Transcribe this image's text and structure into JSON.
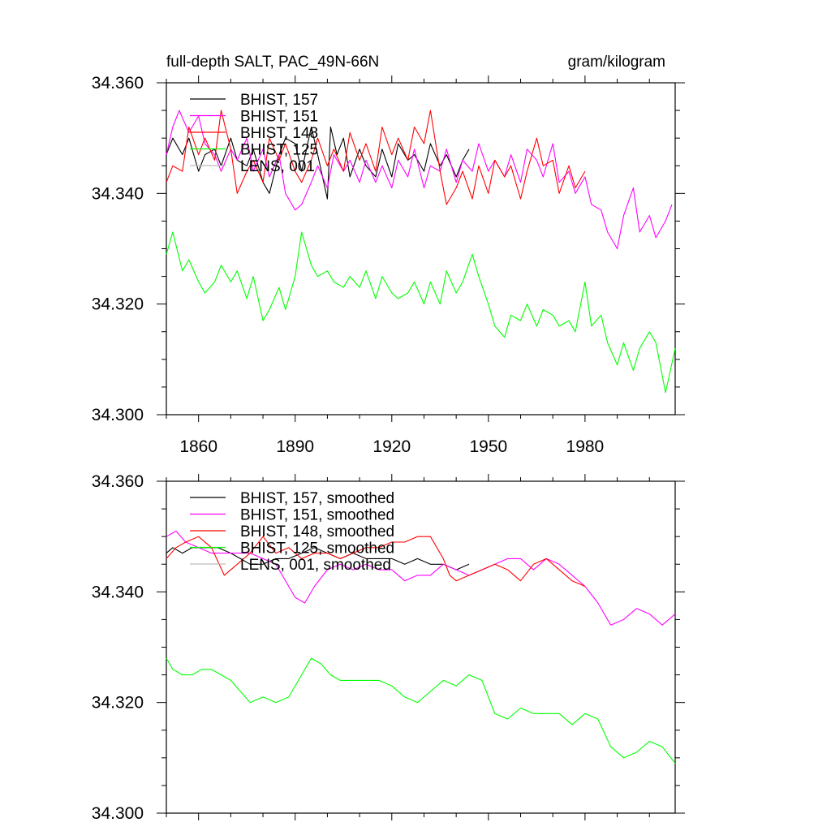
{
  "chart_data": [
    {
      "type": "line",
      "title": "full-depth SALT, PAC_49N-66N",
      "units": "gram/kilogram",
      "xlim": [
        1850,
        2008
      ],
      "ylim": [
        34.3,
        34.36
      ],
      "xticks": [
        1860,
        1890,
        1920,
        1950,
        1980
      ],
      "xtick_labels": [
        "1860",
        "1890",
        "1920",
        "1950",
        "1980"
      ],
      "yticks": [
        34.3,
        34.32,
        34.34,
        34.36
      ],
      "ytick_labels": [
        "34.300",
        "34.320",
        "34.340",
        "34.360"
      ],
      "legend_position": "top-left",
      "series": [
        {
          "name": "BHIST, 157",
          "color": "#000000",
          "x": [
            1850,
            1852,
            1855,
            1857,
            1860,
            1862,
            1865,
            1867,
            1870,
            1872,
            1875,
            1877,
            1880,
            1882,
            1885,
            1887,
            1890,
            1892,
            1895,
            1897,
            1900,
            1901,
            1903,
            1905,
            1907,
            1910,
            1912,
            1915,
            1917,
            1920,
            1922,
            1925,
            1927,
            1930,
            1932,
            1935,
            1937,
            1940,
            1942,
            1944
          ],
          "y": [
            34.347,
            34.35,
            34.347,
            34.35,
            34.344,
            34.347,
            34.348,
            34.345,
            34.35,
            34.346,
            34.345,
            34.348,
            34.342,
            34.34,
            34.347,
            34.35,
            34.349,
            34.344,
            34.352,
            34.347,
            34.339,
            34.352,
            34.347,
            34.35,
            34.343,
            34.348,
            34.345,
            34.343,
            34.348,
            34.343,
            34.349,
            34.346,
            34.347,
            34.344,
            34.349,
            34.345,
            34.347,
            34.343,
            34.346,
            34.348
          ]
        },
        {
          "name": "BHIST, 151",
          "color": "#ff00ff",
          "x": [
            1850,
            1852,
            1854,
            1857,
            1860,
            1862,
            1865,
            1867,
            1870,
            1872,
            1875,
            1877,
            1880,
            1882,
            1885,
            1887,
            1890,
            1892,
            1895,
            1897,
            1900,
            1902,
            1905,
            1907,
            1910,
            1912,
            1915,
            1917,
            1920,
            1922,
            1925,
            1927,
            1930,
            1932,
            1935,
            1937,
            1940,
            1942,
            1945,
            1947,
            1950,
            1952,
            1955,
            1957,
            1960,
            1962,
            1965,
            1967,
            1970,
            1972,
            1975,
            1977,
            1980,
            1982,
            1985,
            1987,
            1990,
            1992,
            1995,
            1997,
            2000,
            2002,
            2005,
            2007
          ],
          "y": [
            34.347,
            34.352,
            34.355,
            34.351,
            34.354,
            34.349,
            34.347,
            34.344,
            34.348,
            34.346,
            34.35,
            34.344,
            34.348,
            34.343,
            34.347,
            34.34,
            34.337,
            34.338,
            34.342,
            34.345,
            34.341,
            34.347,
            34.344,
            34.346,
            34.342,
            34.346,
            34.342,
            34.345,
            34.341,
            34.346,
            34.343,
            34.348,
            34.341,
            34.345,
            34.344,
            34.348,
            34.342,
            34.346,
            34.344,
            34.349,
            34.344,
            34.346,
            34.343,
            34.347,
            34.342,
            34.348,
            34.346,
            34.343,
            34.349,
            34.342,
            34.344,
            34.34,
            34.343,
            34.338,
            34.337,
            34.333,
            34.33,
            34.336,
            34.341,
            34.333,
            34.336,
            34.332,
            34.335,
            34.338
          ]
        },
        {
          "name": "BHIST, 148",
          "color": "#ff0000",
          "x": [
            1850,
            1852,
            1855,
            1857,
            1860,
            1862,
            1865,
            1867,
            1870,
            1872,
            1875,
            1877,
            1880,
            1882,
            1885,
            1887,
            1890,
            1892,
            1895,
            1897,
            1900,
            1902,
            1905,
            1907,
            1910,
            1912,
            1915,
            1917,
            1920,
            1922,
            1925,
            1927,
            1930,
            1932,
            1935,
            1937,
            1940,
            1942,
            1945,
            1947,
            1950,
            1952,
            1955,
            1957,
            1960,
            1962,
            1965,
            1967,
            1970,
            1972,
            1975,
            1977,
            1980
          ],
          "y": [
            34.342,
            34.345,
            34.344,
            34.352,
            34.347,
            34.35,
            34.346,
            34.355,
            34.348,
            34.34,
            34.344,
            34.346,
            34.342,
            34.35,
            34.346,
            34.349,
            34.344,
            34.342,
            34.346,
            34.35,
            34.345,
            34.348,
            34.344,
            34.351,
            34.346,
            34.349,
            34.344,
            34.352,
            34.347,
            34.35,
            34.346,
            34.352,
            34.349,
            34.355,
            34.344,
            34.338,
            34.341,
            34.344,
            34.339,
            34.345,
            34.34,
            34.346,
            34.343,
            34.345,
            34.339,
            34.344,
            34.35,
            34.345,
            34.346,
            34.34,
            34.345,
            34.341,
            34.344
          ]
        },
        {
          "name": "BHIST, 125",
          "color": "#00ff00",
          "x": [
            1850,
            1852,
            1855,
            1857,
            1860,
            1862,
            1865,
            1867,
            1870,
            1872,
            1875,
            1877,
            1880,
            1882,
            1885,
            1887,
            1890,
            1892,
            1895,
            1897,
            1900,
            1902,
            1905,
            1907,
            1910,
            1912,
            1915,
            1917,
            1920,
            1922,
            1925,
            1927,
            1930,
            1932,
            1935,
            1937,
            1940,
            1942,
            1945,
            1947,
            1950,
            1952,
            1955,
            1957,
            1960,
            1962,
            1965,
            1967,
            1970,
            1972,
            1975,
            1977,
            1980,
            1982,
            1985,
            1987,
            1990,
            1992,
            1995,
            1997,
            2000,
            2002,
            2005,
            2008
          ],
          "y": [
            34.329,
            34.333,
            34.326,
            34.328,
            34.324,
            34.322,
            34.324,
            34.327,
            34.324,
            34.326,
            34.321,
            34.325,
            34.317,
            34.319,
            34.323,
            34.319,
            34.325,
            34.333,
            34.327,
            34.325,
            34.326,
            34.324,
            34.323,
            34.325,
            34.323,
            34.326,
            34.321,
            34.325,
            34.322,
            34.321,
            34.322,
            34.324,
            34.32,
            34.324,
            34.32,
            34.326,
            34.322,
            34.324,
            34.329,
            34.325,
            34.32,
            34.316,
            34.314,
            34.318,
            34.317,
            34.32,
            34.316,
            34.319,
            34.318,
            34.316,
            34.317,
            34.315,
            34.324,
            34.316,
            34.318,
            34.313,
            34.309,
            34.313,
            34.308,
            34.312,
            34.315,
            34.313,
            34.304,
            34.312
          ]
        },
        {
          "name": "LENS, 001",
          "color": "#bbbbbb",
          "x": [],
          "y": []
        }
      ]
    },
    {
      "type": "line",
      "xlim": [
        1850,
        2008
      ],
      "ylim": [
        34.3,
        34.36
      ],
      "xticks": [
        1860,
        1890,
        1920,
        1950,
        1980
      ],
      "yticks": [
        34.3,
        34.32,
        34.34,
        34.36
      ],
      "ytick_labels": [
        "34.300",
        "34.320",
        "34.340",
        "34.360"
      ],
      "legend_position": "top-left",
      "series": [
        {
          "name": "BHIST, 157, smoothed",
          "color": "#000000",
          "x": [
            1850,
            1852,
            1855,
            1858,
            1860,
            1863,
            1866,
            1870,
            1873,
            1876,
            1880,
            1884,
            1888,
            1892,
            1896,
            1900,
            1904,
            1908,
            1912,
            1916,
            1920,
            1924,
            1928,
            1932,
            1936,
            1940,
            1944
          ],
          "y": [
            34.347,
            34.348,
            34.347,
            34.348,
            34.348,
            34.348,
            34.348,
            34.347,
            34.346,
            34.345,
            34.345,
            34.346,
            34.346,
            34.347,
            34.348,
            34.347,
            34.346,
            34.347,
            34.346,
            34.346,
            34.346,
            34.345,
            34.346,
            34.345,
            34.345,
            34.344,
            34.345
          ]
        },
        {
          "name": "BHIST, 151, smoothed",
          "color": "#ff00ff",
          "x": [
            1850,
            1853,
            1856,
            1860,
            1864,
            1868,
            1872,
            1876,
            1880,
            1884,
            1888,
            1890,
            1893,
            1896,
            1900,
            1904,
            1908,
            1912,
            1916,
            1920,
            1924,
            1928,
            1932,
            1936,
            1940,
            1944,
            1948,
            1952,
            1956,
            1960,
            1964,
            1968,
            1972,
            1976,
            1980,
            1984,
            1988,
            1992,
            1996,
            2000,
            2004,
            2008
          ],
          "y": [
            34.35,
            34.351,
            34.349,
            34.348,
            34.347,
            34.347,
            34.347,
            34.347,
            34.346,
            34.345,
            34.341,
            34.339,
            34.338,
            34.341,
            34.344,
            34.345,
            34.344,
            34.345,
            34.344,
            34.344,
            34.342,
            34.343,
            34.343,
            34.345,
            34.344,
            34.343,
            34.344,
            34.345,
            34.346,
            34.346,
            34.344,
            34.346,
            34.345,
            34.343,
            34.341,
            34.338,
            34.334,
            34.335,
            34.337,
            34.336,
            34.334,
            34.336
          ]
        },
        {
          "name": "BHIST, 148, smoothed",
          "color": "#ff0000",
          "x": [
            1850,
            1853,
            1856,
            1860,
            1864,
            1868,
            1872,
            1876,
            1880,
            1884,
            1888,
            1892,
            1896,
            1900,
            1904,
            1908,
            1912,
            1916,
            1920,
            1924,
            1928,
            1932,
            1936,
            1938,
            1940,
            1944,
            1948,
            1952,
            1956,
            1960,
            1964,
            1968,
            1972,
            1976,
            1980
          ],
          "y": [
            34.346,
            34.348,
            34.349,
            34.35,
            34.348,
            34.343,
            34.345,
            34.347,
            34.35,
            34.347,
            34.348,
            34.346,
            34.347,
            34.347,
            34.346,
            34.347,
            34.348,
            34.348,
            34.349,
            34.349,
            34.35,
            34.35,
            34.346,
            34.343,
            34.342,
            34.343,
            34.344,
            34.345,
            34.344,
            34.342,
            34.345,
            34.346,
            34.344,
            34.342,
            34.341
          ]
        },
        {
          "name": "BHIST, 125, smoothed",
          "color": "#00ff00",
          "x": [
            1850,
            1852,
            1855,
            1858,
            1861,
            1864,
            1867,
            1870,
            1873,
            1876,
            1880,
            1884,
            1888,
            1892,
            1895,
            1898,
            1901,
            1904,
            1908,
            1912,
            1916,
            1920,
            1924,
            1928,
            1932,
            1936,
            1940,
            1944,
            1948,
            1952,
            1956,
            1960,
            1964,
            1968,
            1972,
            1976,
            1980,
            1984,
            1988,
            1992,
            1996,
            2000,
            2004,
            2008
          ],
          "y": [
            34.328,
            34.326,
            34.325,
            34.325,
            34.326,
            34.326,
            34.325,
            34.324,
            34.322,
            34.32,
            34.321,
            34.32,
            34.321,
            34.325,
            34.328,
            34.327,
            34.325,
            34.324,
            34.324,
            34.324,
            34.324,
            34.323,
            34.321,
            34.32,
            34.322,
            34.324,
            34.323,
            34.325,
            34.324,
            34.318,
            34.317,
            34.319,
            34.318,
            34.318,
            34.318,
            34.316,
            34.318,
            34.317,
            34.312,
            34.31,
            34.311,
            34.313,
            34.312,
            34.309
          ]
        },
        {
          "name": "LENS, 001, smoothed",
          "color": "#bbbbbb",
          "x": [],
          "y": []
        }
      ]
    }
  ]
}
